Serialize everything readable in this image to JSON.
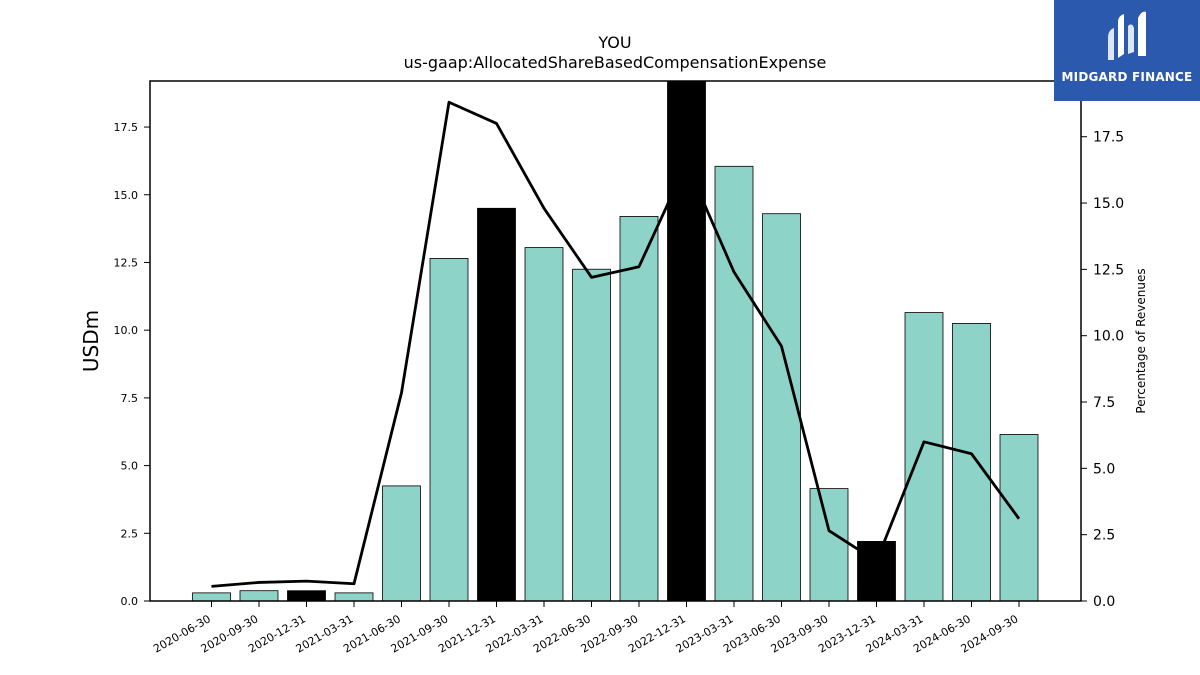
{
  "logo": {
    "text": "MIDGARD FINANCE",
    "bg_color": "#2b59ad"
  },
  "chart_data": {
    "type": "bar",
    "title": "YOU",
    "subtitle": "us-gaap:AllocatedShareBasedCompensationExpense",
    "ylabel": "USDm",
    "y2label": "Percentage of Revenues",
    "ylim": [
      0,
      19.2
    ],
    "y2lim": [
      0,
      19.6
    ],
    "yticks": [
      "0.0",
      "2.5",
      "5.0",
      "7.5",
      "10.0",
      "12.5",
      "15.0",
      "17.5"
    ],
    "y2ticks": [
      "0.0",
      "2.5",
      "5.0",
      "7.5",
      "10.0",
      "12.5",
      "15.0",
      "17.5"
    ],
    "categories": [
      "2020-06-30",
      "2020-09-30",
      "2020-12-31",
      "2021-03-31",
      "2021-06-30",
      "2021-09-30",
      "2021-12-31",
      "2022-03-31",
      "2022-06-30",
      "2022-09-30",
      "2022-12-31",
      "2023-03-31",
      "2023-06-30",
      "2023-09-30",
      "2023-12-31",
      "2024-03-31",
      "2024-06-30",
      "2024-09-30"
    ],
    "series": [
      {
        "type": "bar",
        "axis": "left",
        "values": [
          0.3,
          0.38,
          0.38,
          0.3,
          4.25,
          12.65,
          14.5,
          13.05,
          12.25,
          14.2,
          19.3,
          16.05,
          14.3,
          4.15,
          2.2,
          10.65,
          10.25,
          6.15
        ],
        "colors": [
          "#8dd3c7",
          "#8dd3c7",
          "#000000",
          "#8dd3c7",
          "#8dd3c7",
          "#8dd3c7",
          "#000000",
          "#8dd3c7",
          "#8dd3c7",
          "#8dd3c7",
          "#000000",
          "#8dd3c7",
          "#8dd3c7",
          "#8dd3c7",
          "#000000",
          "#8dd3c7",
          "#8dd3c7",
          "#8dd3c7"
        ]
      },
      {
        "type": "line",
        "axis": "right",
        "color": "#000000",
        "values": [
          0.55,
          0.7,
          0.75,
          0.65,
          7.85,
          18.8,
          18.0,
          14.8,
          12.2,
          12.6,
          16.5,
          12.4,
          9.6,
          2.65,
          1.5,
          6.0,
          5.55,
          3.1
        ]
      }
    ],
    "grid": false,
    "legend": "none"
  }
}
